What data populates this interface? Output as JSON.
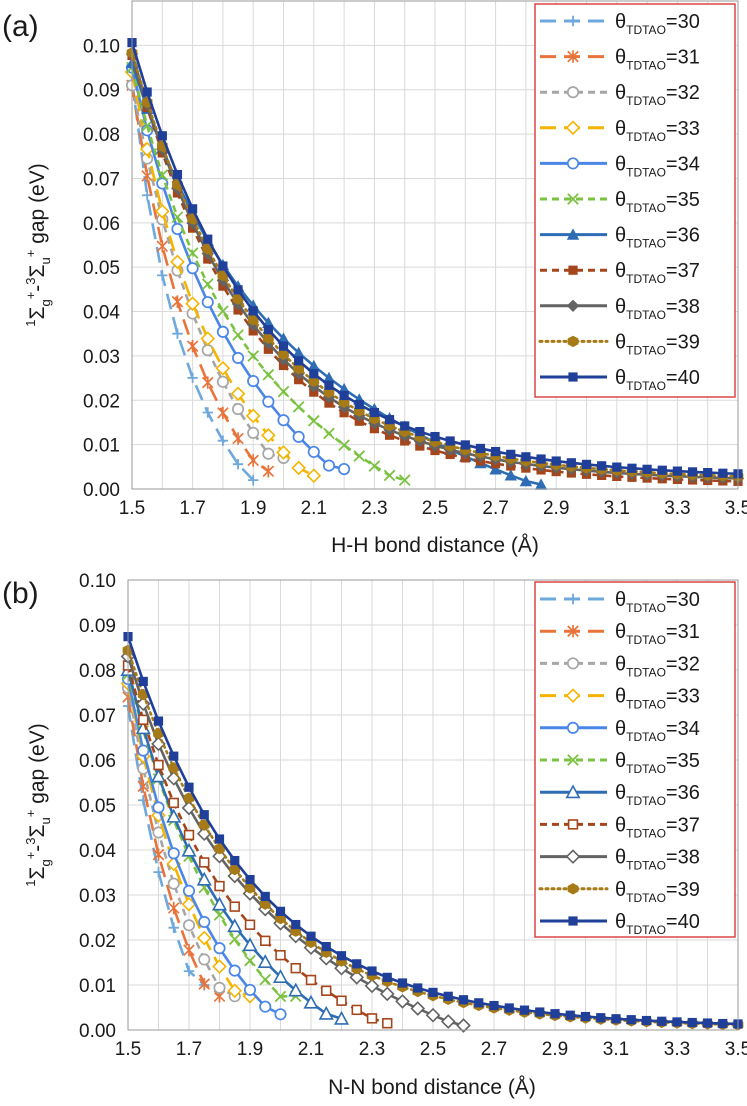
{
  "colors": {
    "th30": "#6fa8dc",
    "th31": "#e8743b",
    "th32": "#a6a6a6",
    "th33": "#f4b400",
    "th34": "#4a86e8",
    "th35": "#7cc242",
    "th36": "#2e6db4",
    "th37": "#a4451c",
    "th38": "#636363",
    "th39": "#a57a17",
    "th40": "#1f3f99",
    "legend_border": "#d93a3a",
    "grid": "#d9d9d9"
  },
  "chart_data": [
    {
      "type": "line",
      "panel_label": "(a)",
      "xlabel": "H-H bond distance (Å)",
      "ylabel": {
        "sup1": "1",
        "sym1": "Σ",
        "sub1": "g",
        "sup2": "+",
        "sep": "-",
        "sup3": "3",
        "sym2": "Σ",
        "sub2": "u",
        "sup4": "+",
        "tail": " gap (eV)"
      },
      "xlim": [
        1.5,
        3.5
      ],
      "ylim": [
        0,
        0.11
      ],
      "xticks": [
        "1.5",
        "1.7",
        "1.9",
        "2.1",
        "2.3",
        "2.5",
        "2.7",
        "2.9",
        "3.1",
        "3.3",
        "3.5"
      ],
      "yticks": [
        "0.00",
        "0.01",
        "0.02",
        "0.03",
        "0.04",
        "0.05",
        "0.06",
        "0.07",
        "0.08",
        "0.09",
        "0.10"
      ],
      "grid": true,
      "legend_position": "top-right",
      "legend_prefix": "θ",
      "legend_subscript": "TDTAO",
      "series": [
        {
          "name": "=30",
          "theta": 30,
          "color_key": "th30",
          "marker": "plus",
          "dash": "long",
          "end_x": 1.9,
          "end_y": 0.002,
          "a": 0.092,
          "b": 0.092
        },
        {
          "name": "=31",
          "theta": 31,
          "color_key": "th31",
          "marker": "star",
          "dash": "long",
          "end_x": 1.95,
          "end_y": 0.004,
          "a": 0.091,
          "b": 0.088
        },
        {
          "name": "=32",
          "theta": 32,
          "color_key": "th32",
          "marker": "circle-open",
          "dash": "short",
          "end_x": 2.0,
          "end_y": 0.007,
          "a": 0.091,
          "b": 0.086
        },
        {
          "name": "=33",
          "theta": 33,
          "color_key": "th33",
          "marker": "diamond-open",
          "dash": "long",
          "end_x": 2.1,
          "end_y": 0.003,
          "a": 0.094,
          "b": 0.084
        },
        {
          "name": "=34",
          "theta": 34,
          "color_key": "th34",
          "marker": "circle-open",
          "dash": "solid",
          "end_x": 2.2,
          "end_y": 0.0045,
          "a": 0.095,
          "b": 0.082
        },
        {
          "name": "=35",
          "theta": 35,
          "color_key": "th35",
          "marker": "x",
          "dash": "short",
          "end_x": 2.4,
          "end_y": 0.002,
          "a": 0.095,
          "b": 0.08
        },
        {
          "name": "=36",
          "theta": 36,
          "color_key": "th36",
          "marker": "triangle",
          "dash": "solid",
          "end_x": 2.85,
          "end_y": 0.001,
          "a": 0.096,
          "b": 0.075
        },
        {
          "name": "=37",
          "theta": 37,
          "color_key": "th37",
          "marker": "square",
          "dash": "short",
          "end_x": 3.5,
          "end_y": 0.0012,
          "a": 0.097,
          "b": 0.072
        },
        {
          "name": "=38",
          "theta": 38,
          "color_key": "th38",
          "marker": "diamond",
          "dash": "solid",
          "end_x": 3.5,
          "end_y": 0.0018,
          "a": 0.097,
          "b": 0.069
        },
        {
          "name": "=39",
          "theta": 39,
          "color_key": "th39",
          "marker": "hexagon",
          "dash": "dot",
          "end_x": 3.5,
          "end_y": 0.0022,
          "a": 0.097,
          "b": 0.066
        },
        {
          "name": "=40",
          "theta": 40,
          "color_key": "th40",
          "marker": "square",
          "dash": "solid",
          "end_x": 3.5,
          "end_y": 0.0027,
          "a": 0.099,
          "b": 0.064
        }
      ]
    },
    {
      "type": "line",
      "panel_label": "(b)",
      "xlabel": "N-N bond distance (Å)",
      "ylabel": {
        "sup1": "1",
        "sym1": "Σ",
        "sub1": "g",
        "sup2": "+",
        "sep": "-",
        "sup3": "3",
        "sym2": "Σ",
        "sub2": "u",
        "sup4": "+",
        "tail": " gap (eV)"
      },
      "xlim": [
        1.5,
        3.5
      ],
      "ylim": [
        0,
        0.1
      ],
      "xticks": [
        "1.5",
        "1.7",
        "1.9",
        "2.1",
        "2.3",
        "2.5",
        "2.7",
        "2.9",
        "3.1",
        "3.3",
        "3.5"
      ],
      "yticks": [
        "0.00",
        "0.01",
        "0.02",
        "0.03",
        "0.04",
        "0.05",
        "0.06",
        "0.07",
        "0.08",
        "0.09",
        "0.10"
      ],
      "grid": true,
      "legend_position": "top-right",
      "legend_prefix": "θ",
      "legend_subscript": "TDTAO",
      "series": [
        {
          "name": "=30",
          "theta": 30,
          "color_key": "th30",
          "marker": "plus",
          "dash": "long",
          "end_x": 1.75,
          "end_y": 0.01,
          "a": 0.072,
          "b": 0.072
        },
        {
          "name": "=31",
          "theta": 31,
          "color_key": "th31",
          "marker": "star",
          "dash": "long",
          "end_x": 1.8,
          "end_y": 0.0075,
          "a": 0.074,
          "b": 0.07
        },
        {
          "name": "=32",
          "theta": 32,
          "color_key": "th32",
          "marker": "circle-open",
          "dash": "short",
          "end_x": 1.85,
          "end_y": 0.0075,
          "a": 0.076,
          "b": 0.068
        },
        {
          "name": "=33",
          "theta": 33,
          "color_key": "th33",
          "marker": "diamond-open",
          "dash": "long",
          "end_x": 1.9,
          "end_y": 0.0075,
          "a": 0.077,
          "b": 0.066
        },
        {
          "name": "=34",
          "theta": 34,
          "color_key": "th34",
          "marker": "circle-open",
          "dash": "solid",
          "end_x": 2.0,
          "end_y": 0.0035,
          "a": 0.078,
          "b": 0.063
        },
        {
          "name": "=35",
          "theta": 35,
          "color_key": "th35",
          "marker": "x",
          "dash": "short",
          "end_x": 2.05,
          "end_y": 0.0075,
          "a": 0.079,
          "b": 0.061
        },
        {
          "name": "=36",
          "theta": 36,
          "color_key": "th36",
          "marker": "triangle-open",
          "dash": "solid",
          "end_x": 2.2,
          "end_y": 0.0025,
          "a": 0.08,
          "b": 0.058
        },
        {
          "name": "=37",
          "theta": 37,
          "color_key": "th37",
          "marker": "square-open",
          "dash": "short",
          "end_x": 2.35,
          "end_y": 0.0015,
          "a": 0.081,
          "b": 0.055
        },
        {
          "name": "=38",
          "theta": 38,
          "color_key": "th38",
          "marker": "diamond-open",
          "dash": "solid",
          "end_x": 2.6,
          "end_y": 0.001,
          "a": 0.083,
          "b": 0.053
        },
        {
          "name": "=39",
          "theta": 39,
          "color_key": "th39",
          "marker": "hexagon",
          "dash": "dot",
          "end_x": 3.5,
          "end_y": 0.0006,
          "a": 0.084,
          "b": 0.051
        },
        {
          "name": "=40",
          "theta": 40,
          "color_key": "th40",
          "marker": "square",
          "dash": "solid",
          "end_x": 3.5,
          "end_y": 0.0007,
          "a": 0.087,
          "b": 0.049
        }
      ]
    }
  ]
}
